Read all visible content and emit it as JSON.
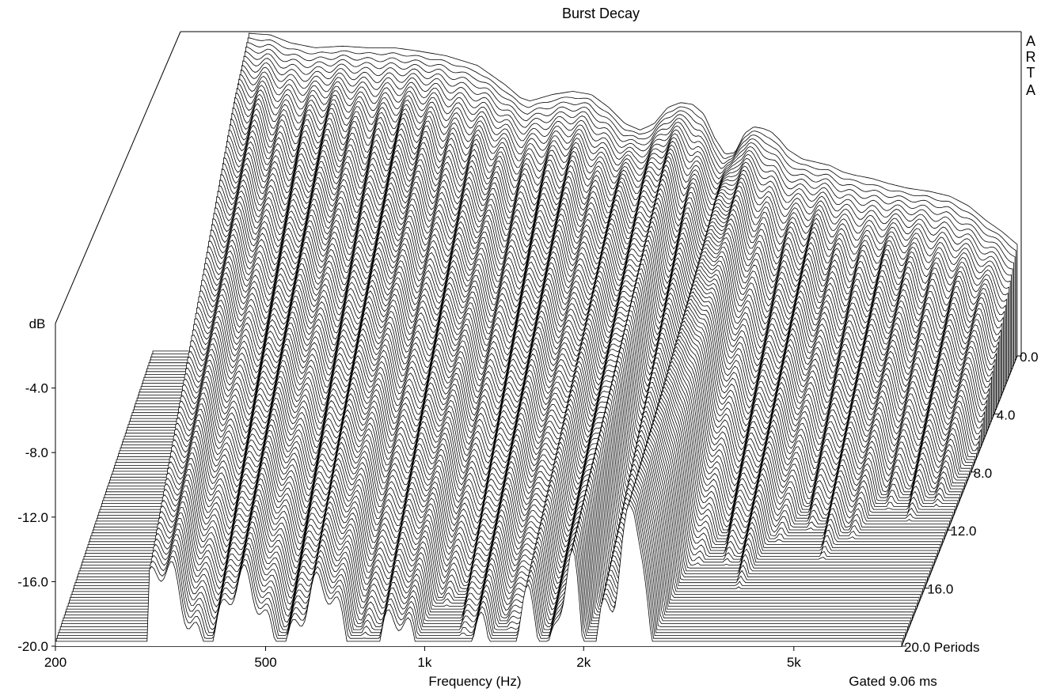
{
  "chart_data": {
    "type": "waterfall",
    "title": "Burst Decay",
    "brand": [
      "A",
      "R",
      "T",
      "A"
    ],
    "xlabel": "Frequency (Hz)",
    "ylabel": "dB",
    "zlabel": "Periods",
    "note": "Gated 9.06 ms",
    "x_scale": "log",
    "xlim": [
      200,
      8000
    ],
    "ylim": [
      -20,
      0
    ],
    "zlim": [
      0,
      20
    ],
    "x_ticks": [
      200,
      500,
      1000,
      2000,
      5000
    ],
    "x_tick_labels": [
      "200",
      "500",
      "1k",
      "2k",
      "5k"
    ],
    "y_ticks": [
      -20,
      -16,
      -12,
      -8,
      -4
    ],
    "y_tick_labels": [
      "-20.0",
      "-16.0",
      "-12.0",
      "-8.0",
      "-4.0"
    ],
    "z_ticks": [
      0,
      4,
      8,
      12,
      16,
      20
    ],
    "z_tick_labels": [
      "0.0",
      "4.0",
      "8.0",
      "12.0",
      "16.0",
      "20.0 Periods"
    ],
    "slice_count": 100,
    "initial_response": {
      "freq_hz": [
        300,
        330,
        360,
        400,
        450,
        500,
        560,
        620,
        700,
        800,
        900,
        960,
        1000,
        1050,
        1100,
        1200,
        1300,
        1400,
        1500,
        1600,
        1700,
        1800,
        1900,
        2000,
        2100,
        2200,
        2300,
        2400,
        2500,
        2600,
        2700,
        2800,
        2900,
        3000,
        3200,
        3400,
        3600,
        3800,
        4000,
        4300,
        4600,
        5000,
        5500,
        6000,
        6500,
        7000,
        7500,
        8000
      ],
      "level_db": [
        0,
        -0.1,
        -0.6,
        -0.9,
        -0.8,
        -0.9,
        -0.9,
        -1.1,
        -1.4,
        -2.0,
        -3.2,
        -4.0,
        -4.2,
        -4.0,
        -3.8,
        -3.6,
        -3.8,
        -4.6,
        -5.6,
        -6.0,
        -5.6,
        -4.6,
        -4.3,
        -4.4,
        -5.0,
        -6.5,
        -7.5,
        -7.4,
        -6.2,
        -5.8,
        -5.9,
        -6.1,
        -6.6,
        -7.2,
        -7.8,
        -8.0,
        -8.2,
        -8.6,
        -8.8,
        -9.0,
        -9.3,
        -9.6,
        -9.8,
        -10.1,
        -10.7,
        -11.6,
        -12.3,
        -13.1
      ]
    }
  }
}
